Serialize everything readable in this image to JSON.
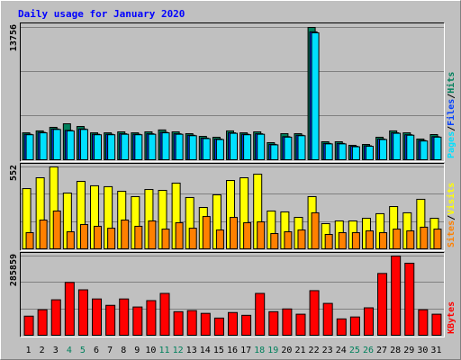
{
  "chart_data": [
    {
      "type": "bar",
      "title": "Daily usage for January 2020",
      "legend_separator": "/",
      "ylim": [
        0,
        13756
      ],
      "yticks": [
        13756
      ],
      "series": [
        {
          "name": "Hits",
          "color": "#00805c",
          "values": [
            2800,
            3000,
            3370,
            3740,
            3460,
            2800,
            2800,
            2900,
            2800,
            2900,
            3100,
            2900,
            2710,
            2430,
            2340,
            3000,
            2800,
            2900,
            1780,
            2710,
            2710,
            13756,
            1870,
            1870,
            1500,
            1590,
            2340,
            3000,
            2800,
            2150,
            2620
          ]
        },
        {
          "name": "Files",
          "color": "#0040ff",
          "values": [
            2650,
            2850,
            3200,
            3050,
            3200,
            2650,
            2650,
            2700,
            2650,
            2700,
            2850,
            2700,
            2550,
            2250,
            2150,
            2800,
            2650,
            2700,
            1600,
            2400,
            2550,
            13300,
            1700,
            1700,
            1400,
            1450,
            2150,
            2800,
            2600,
            2000,
            2400
          ]
        },
        {
          "name": "Pages",
          "color": "#00e0ff",
          "values": [
            2600,
            2800,
            3150,
            3000,
            3150,
            2600,
            2600,
            2650,
            2600,
            2650,
            2800,
            2650,
            2500,
            2200,
            2100,
            2750,
            2600,
            2650,
            1550,
            2350,
            2500,
            13200,
            1650,
            1650,
            1350,
            1400,
            2100,
            2750,
            2550,
            1950,
            2350
          ]
        }
      ]
    },
    {
      "type": "bar",
      "ylim": [
        0,
        552
      ],
      "yticks": [
        552
      ],
      "series": [
        {
          "name": "Visits",
          "color": "#ffff00",
          "values": [
            406,
            479,
            552,
            376,
            455,
            425,
            419,
            388,
            352,
            400,
            394,
            443,
            346,
            279,
            364,
            461,
            479,
            503,
            255,
            249,
            212,
            352,
            170,
            188,
            188,
            206,
            237,
            285,
            243,
            334,
            206
          ]
        },
        {
          "name": "Sites",
          "color": "#ff8000",
          "values": [
            109,
            194,
            255,
            115,
            164,
            152,
            139,
            194,
            152,
            188,
            133,
            176,
            139,
            218,
            127,
            212,
            176,
            182,
            103,
            115,
            127,
            243,
            97,
            109,
            109,
            121,
            109,
            133,
            121,
            146,
            133
          ]
        }
      ]
    },
    {
      "type": "bar",
      "ylim": [
        0,
        285859
      ],
      "yticks": [
        285859
      ],
      "categories": [
        "1",
        "2",
        "3",
        "4",
        "5",
        "6",
        "7",
        "8",
        "9",
        "10",
        "11",
        "12",
        "13",
        "14",
        "15",
        "16",
        "17",
        "18",
        "19",
        "20",
        "21",
        "22",
        "23",
        "24",
        "25",
        "26",
        "27",
        "28",
        "29",
        "30",
        "31"
      ],
      "category_colors": [
        "#000000",
        "#000000",
        "#000000",
        "#00805c",
        "#00805c",
        "#000000",
        "#000000",
        "#000000",
        "#000000",
        "#000000",
        "#00805c",
        "#00805c",
        "#000000",
        "#000000",
        "#000000",
        "#000000",
        "#000000",
        "#00805c",
        "#00805c",
        "#000000",
        "#000000",
        "#000000",
        "#000000",
        "#000000",
        "#00805c",
        "#00805c",
        "#000000",
        "#000000",
        "#000000",
        "#000000",
        "#000000"
      ],
      "series": [
        {
          "name": "KBytes",
          "color": "#ff0000",
          "values": [
            69000,
            92000,
            128000,
            190600,
            164000,
            131000,
            108000,
            131000,
            102000,
            125000,
            151000,
            85000,
            89000,
            79000,
            62000,
            82000,
            72000,
            151000,
            85000,
            95000,
            76000,
            161000,
            115000,
            59000,
            66000,
            99000,
            223000,
            285859,
            260000,
            92000,
            76000
          ]
        }
      ]
    }
  ]
}
